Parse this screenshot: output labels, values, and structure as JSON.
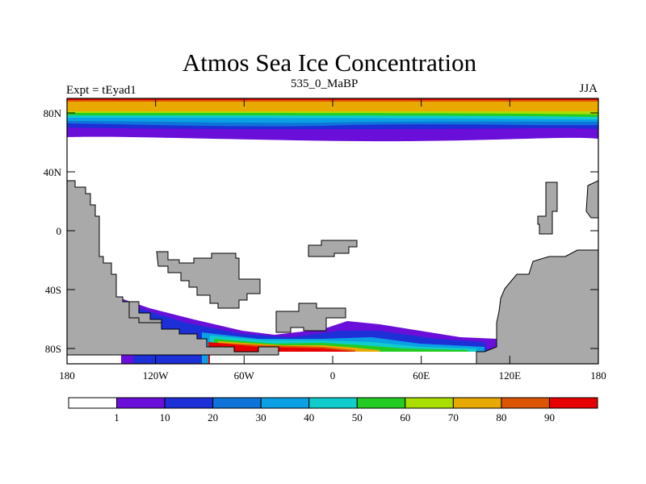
{
  "title": "Atmos Sea Ice Concentration",
  "left_string": "Expt = tEyad1",
  "center_string": "535_0_MaBP",
  "right_string": "JJA",
  "lat_labels": [
    "80N",
    "40N",
    "0",
    "40S",
    "80S"
  ],
  "lon_labels": [
    "180",
    "120W",
    "60W",
    "0",
    "60E",
    "120E",
    "180"
  ],
  "colorbar": {
    "labels": [
      "1",
      "10",
      "20",
      "30",
      "40",
      "50",
      "60",
      "70",
      "80",
      "90"
    ],
    "colors": [
      "#ffffff",
      "#6a0fd9",
      "#1d2fd6",
      "#0f74d9",
      "#0aa0e3",
      "#11cccc",
      "#22cc22",
      "#aadd00",
      "#e8aa00",
      "#dd5500",
      "#e60000"
    ]
  },
  "colors": {
    "land": "#a9a9a9",
    "background": "#ffffff"
  },
  "chart_data": {
    "type": "map",
    "title": "Atmos Sea Ice Concentration",
    "variable": "sea ice concentration (%)",
    "season": "JJA",
    "experiment": "tEyad1",
    "time": "535_0_MaBP",
    "lat_range": [
      -90,
      90
    ],
    "lon_range": [
      -180,
      180
    ],
    "contour_levels": [
      1,
      10,
      20,
      30,
      40,
      50,
      60,
      70,
      80,
      90
    ],
    "northern_ice_edge_lat": 62,
    "southern_ice_edge_lat": -62
  }
}
